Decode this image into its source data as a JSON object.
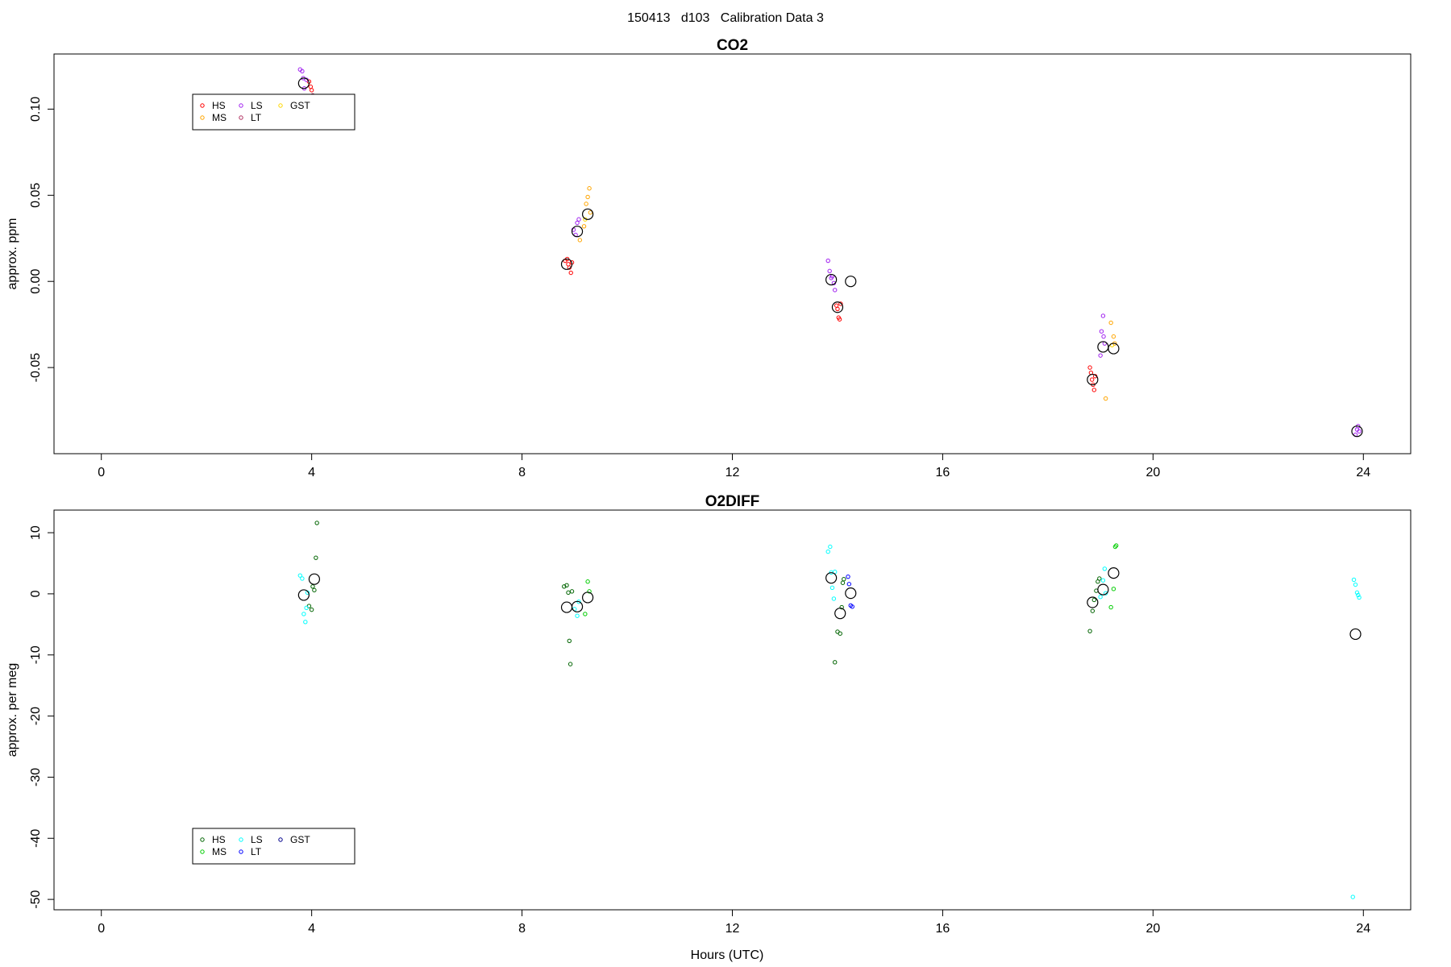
{
  "figure_title": "150413   d103   Calibration Data 3",
  "xlabel": "Hours (UTC)",
  "chart_data": [
    {
      "type": "scatter",
      "title": "CO2",
      "ylabel": "approx. ppm",
      "xlabel": "",
      "xlim": [
        -0.9,
        24.9
      ],
      "ylim": [
        -0.1,
        0.132
      ],
      "xticks": [
        0,
        4,
        8,
        12,
        16,
        20,
        24
      ],
      "yticks": [
        -0.05,
        0.0,
        0.05,
        0.1
      ],
      "ytick_labels": [
        "-0.05",
        "0.00",
        "0.05",
        "0.10"
      ],
      "legend": {
        "position": "top-left",
        "items": [
          {
            "label": "HS",
            "color": "#ff0000"
          },
          {
            "label": "MS",
            "color": "#ffa500"
          },
          {
            "label": "LS",
            "color": "#a020f0"
          },
          {
            "label": "LT",
            "color": "#b03060"
          },
          {
            "label": "GST",
            "color": "#ffd700"
          }
        ]
      },
      "series": [
        {
          "legend_item": "HS",
          "color": "#ff0000",
          "points": [
            [
              3.95,
              0.116
            ],
            [
              3.98,
              0.113
            ],
            [
              4.0,
              0.111
            ],
            [
              8.82,
              0.012
            ],
            [
              8.86,
              0.013
            ],
            [
              8.88,
              0.01
            ],
            [
              8.9,
              0.008
            ],
            [
              8.93,
              0.005
            ],
            [
              8.95,
              0.011
            ],
            [
              13.98,
              -0.014
            ],
            [
              14.0,
              -0.016
            ],
            [
              14.02,
              -0.021
            ],
            [
              14.04,
              -0.022
            ],
            [
              14.06,
              -0.013
            ],
            [
              18.8,
              -0.05
            ],
            [
              18.82,
              -0.053
            ],
            [
              18.84,
              -0.057
            ],
            [
              18.86,
              -0.06
            ],
            [
              18.88,
              -0.063
            ],
            [
              18.9,
              -0.055
            ]
          ]
        },
        {
          "legend_item": "MS",
          "color": "#ffa500",
          "points": [
            [
              9.1,
              0.024
            ],
            [
              9.18,
              0.032
            ],
            [
              9.22,
              0.045
            ],
            [
              9.25,
              0.049
            ],
            [
              9.28,
              0.054
            ],
            [
              9.3,
              0.04
            ],
            [
              19.1,
              -0.068
            ],
            [
              19.2,
              -0.024
            ],
            [
              19.25,
              -0.032
            ],
            [
              19.27,
              -0.036
            ]
          ]
        },
        {
          "legend_item": "LS",
          "color": "#a020f0",
          "points": [
            [
              3.78,
              0.123
            ],
            [
              3.82,
              0.122
            ],
            [
              3.84,
              0.118
            ],
            [
              3.86,
              0.112
            ],
            [
              3.9,
              0.117
            ],
            [
              8.98,
              0.03
            ],
            [
              9.02,
              0.027
            ],
            [
              9.05,
              0.034
            ],
            [
              9.08,
              0.036
            ],
            [
              13.82,
              0.012
            ],
            [
              13.85,
              0.006
            ],
            [
              13.88,
              0.002
            ],
            [
              13.9,
              0.003
            ],
            [
              13.93,
              -0.001
            ],
            [
              13.95,
              -0.005
            ],
            [
              19.0,
              -0.043
            ],
            [
              19.02,
              -0.029
            ],
            [
              19.05,
              -0.02
            ],
            [
              19.06,
              -0.032
            ],
            [
              19.08,
              -0.036
            ],
            [
              23.85,
              -0.089
            ],
            [
              23.88,
              -0.086
            ],
            [
              23.9,
              -0.084
            ],
            [
              23.92,
              -0.087
            ]
          ]
        },
        {
          "legend_item": "LT",
          "color": "#b03060",
          "points": [
            [
              4.02,
              0.108
            ]
          ]
        },
        {
          "legend_item": "GST",
          "color": "#ffd700",
          "points": [
            [
              9.2,
              0.036
            ],
            [
              19.22,
              -0.037
            ]
          ]
        },
        {
          "legend_item": "",
          "color": "#000000",
          "marker": "mean",
          "points": [
            [
              3.85,
              0.115
            ],
            [
              8.85,
              0.01
            ],
            [
              9.05,
              0.029
            ],
            [
              9.25,
              0.039
            ],
            [
              13.88,
              0.001
            ],
            [
              14.0,
              -0.015
            ],
            [
              14.25,
              0.0
            ],
            [
              18.85,
              -0.057
            ],
            [
              19.05,
              -0.038
            ],
            [
              19.25,
              -0.039
            ],
            [
              23.88,
              -0.087
            ]
          ]
        }
      ]
    },
    {
      "type": "scatter",
      "title": "O2DIFF",
      "ylabel": "approx. per meg",
      "xlabel": "Hours (UTC)",
      "xlim": [
        -0.9,
        24.9
      ],
      "ylim": [
        -51.7,
        13.7
      ],
      "xticks": [
        0,
        4,
        8,
        12,
        16,
        20,
        24
      ],
      "yticks": [
        -50,
        -40,
        -30,
        -20,
        -10,
        0,
        10
      ],
      "ytick_labels": [
        "-50",
        "-40",
        "-30",
        "-20",
        "-10",
        "0",
        "10"
      ],
      "legend": {
        "position": "bottom-left",
        "items": [
          {
            "label": "HS",
            "color": "#006400"
          },
          {
            "label": "MS",
            "color": "#00cd00"
          },
          {
            "label": "LS",
            "color": "#00ffff"
          },
          {
            "label": "LT",
            "color": "#0000ff"
          },
          {
            "label": "GST",
            "color": "#00008b"
          }
        ]
      },
      "series": [
        {
          "legend_item": "HS",
          "color": "#006400",
          "points": [
            [
              3.95,
              -2.0
            ],
            [
              4.0,
              -2.6
            ],
            [
              4.02,
              1.2
            ],
            [
              4.05,
              0.6
            ],
            [
              4.08,
              5.9
            ],
            [
              4.1,
              11.6
            ],
            [
              8.8,
              1.2
            ],
            [
              8.85,
              1.4
            ],
            [
              8.88,
              0.2
            ],
            [
              8.9,
              -7.7
            ],
            [
              8.92,
              -11.5
            ],
            [
              8.95,
              0.4
            ],
            [
              13.95,
              -11.2
            ],
            [
              14.0,
              -6.2
            ],
            [
              14.05,
              -6.5
            ],
            [
              14.08,
              -2.2
            ],
            [
              14.1,
              1.8
            ],
            [
              14.12,
              2.4
            ],
            [
              18.8,
              -6.1
            ],
            [
              18.85,
              -2.8
            ],
            [
              18.88,
              -1.0
            ],
            [
              18.92,
              0.5
            ],
            [
              18.95,
              2.0
            ],
            [
              18.98,
              2.5
            ]
          ]
        },
        {
          "legend_item": "MS",
          "color": "#00cd00",
          "points": [
            [
              9.2,
              -3.3
            ],
            [
              9.25,
              2.0
            ],
            [
              9.28,
              0.4
            ],
            [
              19.2,
              -2.2
            ],
            [
              19.25,
              0.8
            ],
            [
              19.28,
              7.7
            ],
            [
              19.3,
              7.9
            ]
          ]
        },
        {
          "legend_item": "LS",
          "color": "#00ffff",
          "points": [
            [
              3.78,
              3.0
            ],
            [
              3.82,
              2.5
            ],
            [
              3.85,
              -3.3
            ],
            [
              3.88,
              -4.6
            ],
            [
              3.9,
              -2.3
            ],
            [
              3.92,
              0.2
            ],
            [
              9.0,
              -2.5
            ],
            [
              9.05,
              -3.6
            ],
            [
              9.08,
              -1.3
            ],
            [
              13.82,
              6.9
            ],
            [
              13.86,
              7.7
            ],
            [
              13.88,
              3.5
            ],
            [
              13.9,
              1.0
            ],
            [
              13.93,
              -0.8
            ],
            [
              13.95,
              3.6
            ],
            [
              19.0,
              -0.5
            ],
            [
              19.05,
              2.2
            ],
            [
              19.08,
              4.1
            ],
            [
              19.1,
              0.1
            ],
            [
              23.8,
              -49.6
            ],
            [
              23.82,
              2.3
            ],
            [
              23.85,
              1.5
            ],
            [
              23.88,
              0.2
            ],
            [
              23.9,
              -0.2
            ],
            [
              23.92,
              -0.6
            ]
          ]
        },
        {
          "legend_item": "LT",
          "color": "#0000ff",
          "points": [
            [
              14.2,
              2.8
            ],
            [
              14.22,
              1.6
            ],
            [
              14.25,
              -1.9
            ],
            [
              14.28,
              -2.1
            ]
          ]
        },
        {
          "legend_item": "",
          "color": "#000000",
          "marker": "mean",
          "points": [
            [
              3.85,
              -0.2
            ],
            [
              4.05,
              2.4
            ],
            [
              8.85,
              -2.2
            ],
            [
              9.05,
              -2.1
            ],
            [
              9.25,
              -0.6
            ],
            [
              13.88,
              2.6
            ],
            [
              14.05,
              -3.2
            ],
            [
              14.25,
              0.1
            ],
            [
              18.85,
              -1.4
            ],
            [
              19.05,
              0.7
            ],
            [
              19.25,
              3.4
            ],
            [
              23.85,
              -6.6
            ]
          ]
        }
      ]
    }
  ]
}
